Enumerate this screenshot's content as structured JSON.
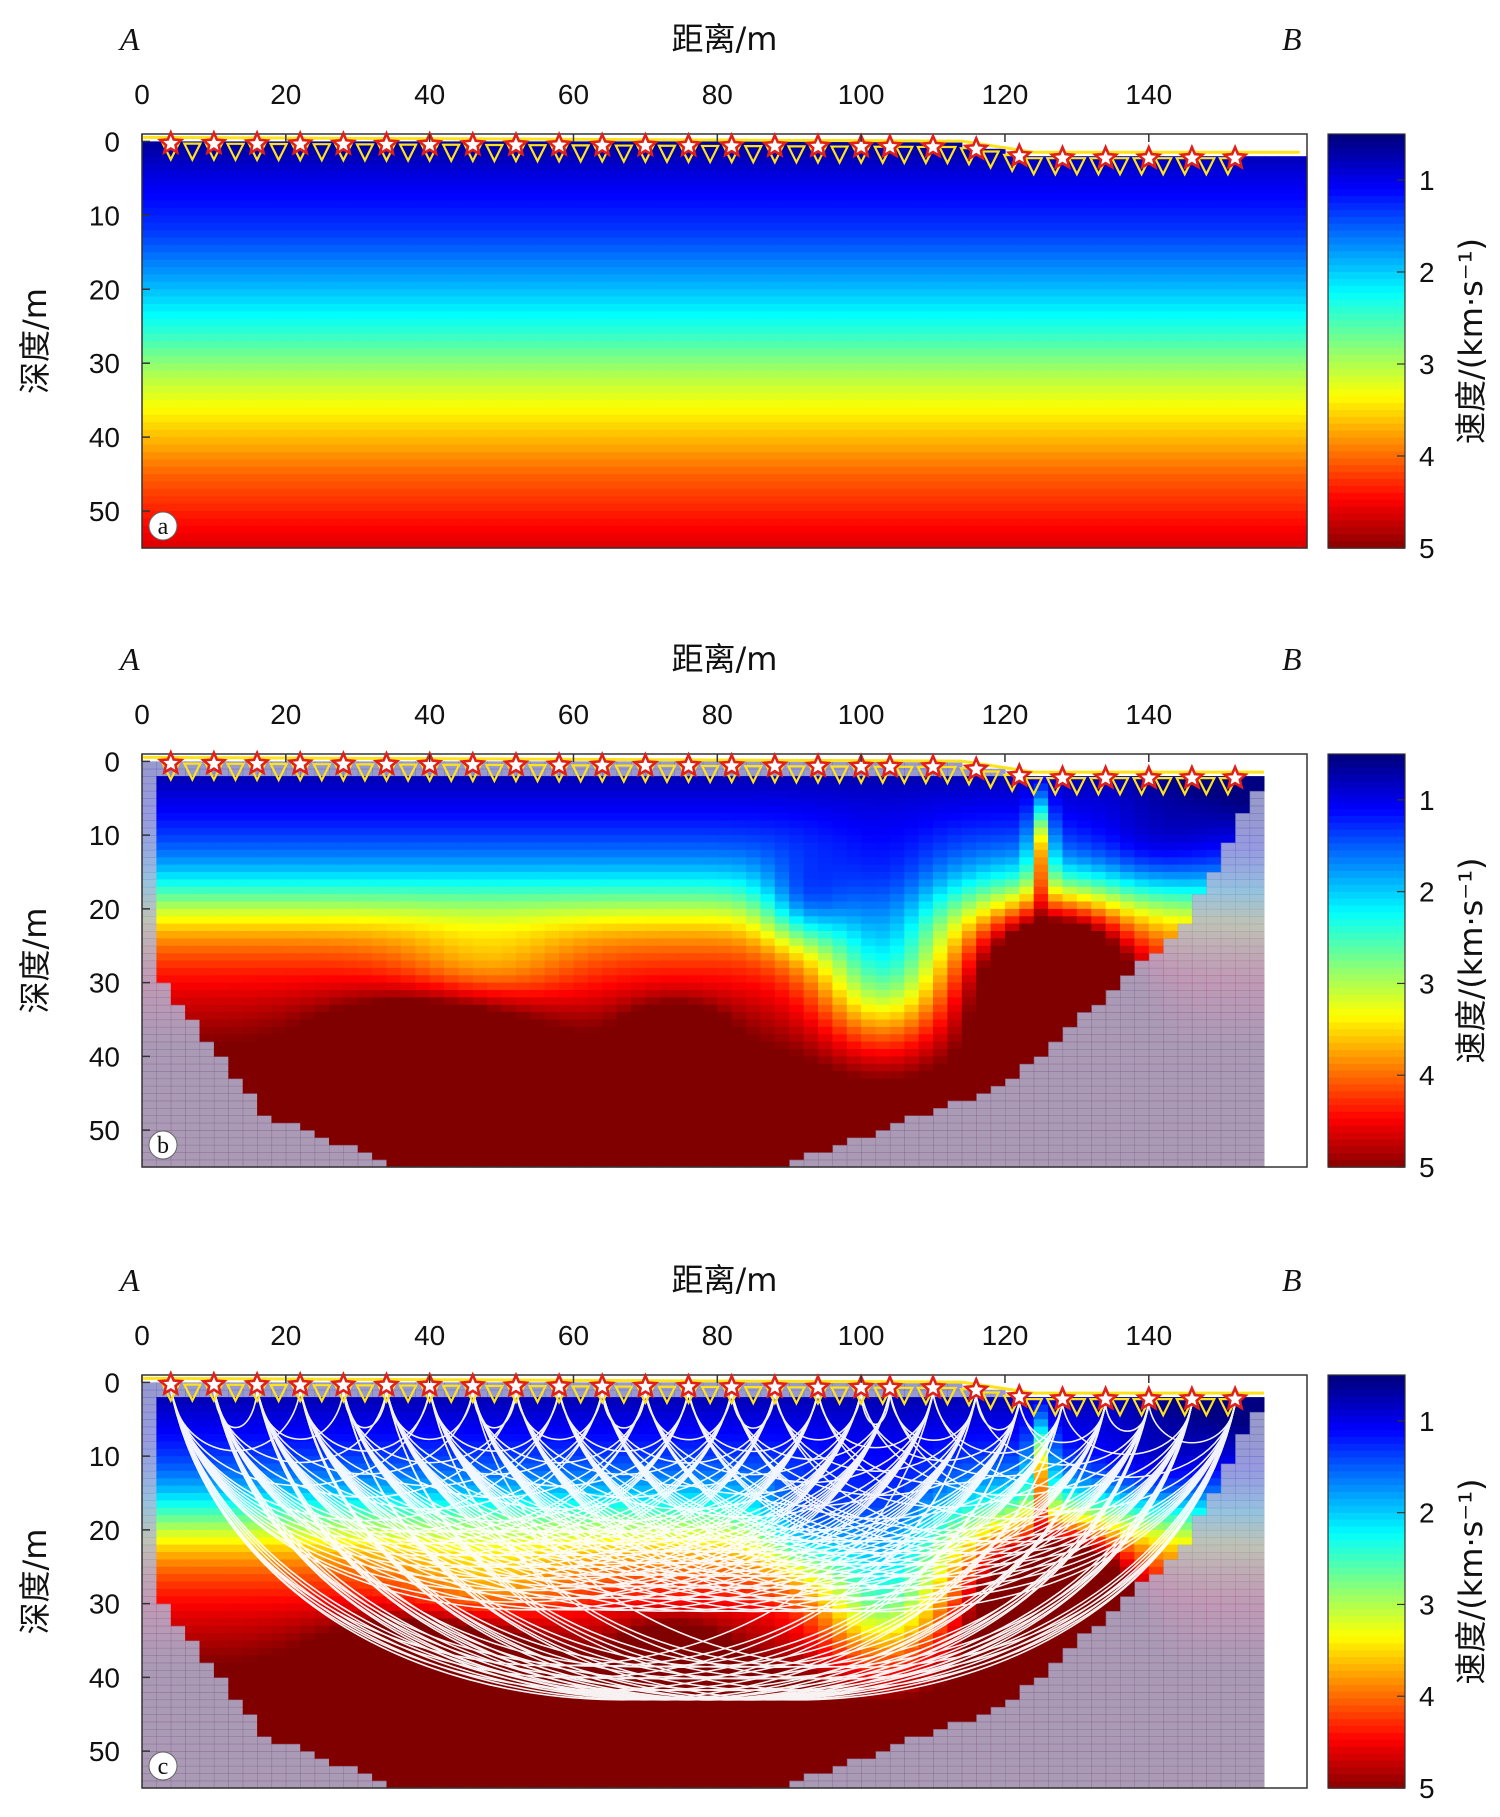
{
  "chart_data": [
    {
      "type": "heatmap",
      "panel_label": "a",
      "title": "距离/m",
      "xlabel": "距离/m",
      "ylabel": "深度/m",
      "endpoint_left": "A",
      "endpoint_right": "B",
      "x_ticks": [
        0,
        20,
        40,
        60,
        80,
        100,
        120,
        140
      ],
      "y_ticks": [
        0,
        10,
        20,
        30,
        40,
        50
      ],
      "xlim": [
        0,
        162
      ],
      "ylim": [
        55,
        -1
      ],
      "colorbar": {
        "label": "速度/(km·s⁻¹)",
        "ticks": [
          1,
          2,
          3,
          4,
          5
        ],
        "range": [
          0.5,
          5
        ],
        "colormap": "jet"
      },
      "surface": {
        "x": [
          0,
          114,
          124,
          161
        ],
        "z": [
          0,
          0.5,
          2,
          2
        ]
      },
      "sources_x": [
        4,
        10,
        16,
        22,
        28,
        34,
        40,
        46,
        52,
        58,
        64,
        70,
        76,
        82,
        88,
        94,
        100,
        104,
        110,
        116,
        122,
        128,
        134,
        140,
        146,
        152
      ],
      "model": {
        "kind": "gradient",
        "depth_velocity": [
          [
            0,
            0.6
          ],
          [
            5,
            0.95
          ],
          [
            12,
            1.3
          ],
          [
            20,
            1.9
          ],
          [
            26,
            2.4
          ],
          [
            32,
            3.0
          ],
          [
            40,
            3.6
          ],
          [
            45,
            4.0
          ],
          [
            55,
            4.6
          ]
        ]
      }
    },
    {
      "type": "heatmap",
      "panel_label": "b",
      "title": "距离/m",
      "xlabel": "距离/m",
      "ylabel": "深度/m",
      "endpoint_left": "A",
      "endpoint_right": "B",
      "x_ticks": [
        0,
        20,
        40,
        60,
        80,
        100,
        120,
        140
      ],
      "y_ticks": [
        0,
        10,
        20,
        30,
        40,
        50
      ],
      "xlim": [
        0,
        162
      ],
      "ylim": [
        55,
        -1
      ],
      "colorbar": {
        "label": "速度/(km·s⁻¹)",
        "ticks": [
          1,
          2,
          3,
          4,
          5
        ],
        "range": [
          0.5,
          5
        ],
        "colormap": "jet"
      },
      "surface": {
        "x": [
          0,
          114,
          124,
          156
        ],
        "z": [
          0,
          0.5,
          2,
          2
        ]
      },
      "sources_x": [
        4,
        10,
        16,
        22,
        28,
        34,
        40,
        46,
        52,
        58,
        64,
        70,
        76,
        82,
        88,
        94,
        100,
        104,
        110,
        116,
        122,
        128,
        134,
        140,
        146,
        152
      ],
      "coverage_boundary": {
        "x": [
          3,
          3,
          17,
          36,
          88,
          120,
          145,
          156
        ],
        "z": [
          2,
          30,
          48,
          55,
          55,
          44,
          22,
          2
        ]
      },
      "model": {
        "kind": "inverted_tomography"
      }
    },
    {
      "type": "heatmap",
      "panel_label": "c",
      "title": "距离/m",
      "xlabel": "距离/m",
      "ylabel": "深度/m",
      "endpoint_left": "A",
      "endpoint_right": "B",
      "x_ticks": [
        0,
        20,
        40,
        60,
        80,
        100,
        120,
        140
      ],
      "y_ticks": [
        0,
        10,
        20,
        30,
        40,
        50
      ],
      "xlim": [
        0,
        162
      ],
      "ylim": [
        55,
        -1
      ],
      "colorbar": {
        "label": "速度/(km·s⁻¹)",
        "ticks": [
          1,
          2,
          3,
          4,
          5
        ],
        "range": [
          0.5,
          5
        ],
        "colormap": "jet"
      },
      "surface": {
        "x": [
          0,
          114,
          124,
          156
        ],
        "z": [
          0,
          0.5,
          2,
          2
        ]
      },
      "sources_x": [
        4,
        10,
        16,
        22,
        28,
        34,
        40,
        46,
        52,
        58,
        64,
        70,
        76,
        82,
        88,
        94,
        100,
        104,
        110,
        116,
        122,
        128,
        134,
        140,
        146,
        152
      ],
      "coverage_boundary": {
        "x": [
          3,
          3,
          17,
          36,
          88,
          120,
          145,
          156
        ],
        "z": [
          2,
          30,
          48,
          55,
          55,
          44,
          22,
          2
        ]
      },
      "model": {
        "kind": "inverted_tomography_with_raypaths"
      }
    }
  ]
}
